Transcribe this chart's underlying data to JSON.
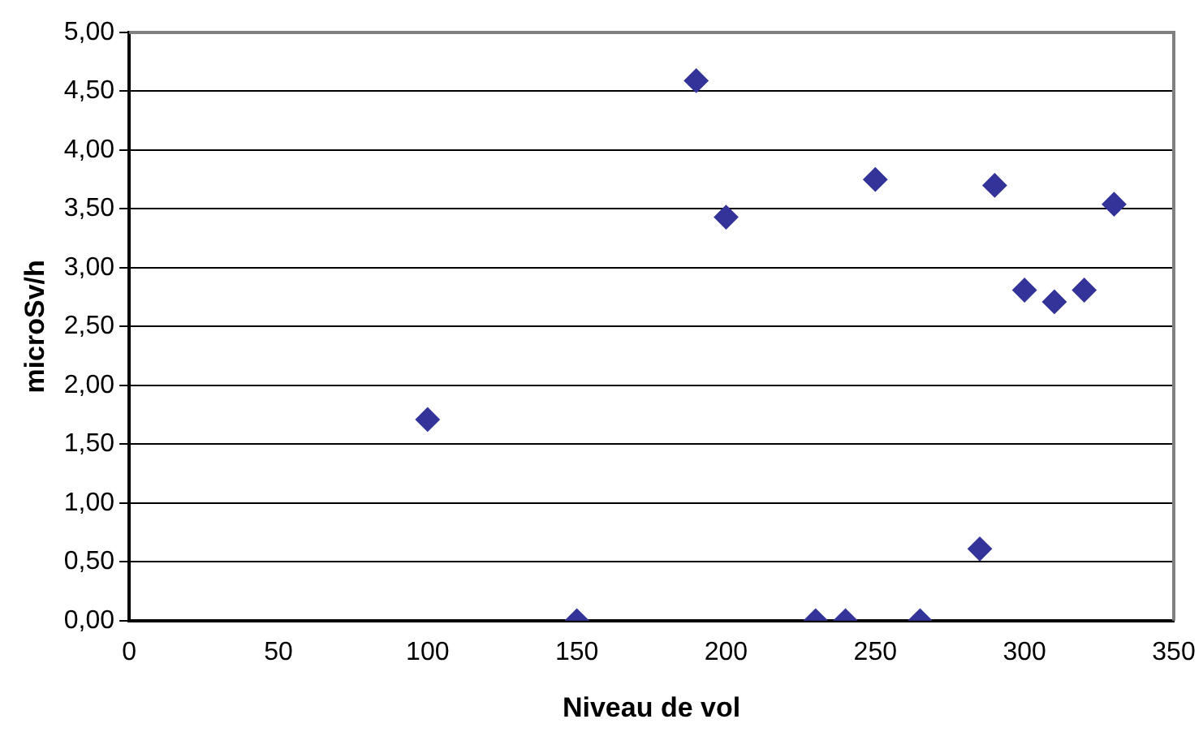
{
  "chart_data": {
    "type": "scatter",
    "xlabel": "Niveau de vol",
    "ylabel": "microSv/h",
    "x": [
      100,
      150,
      190,
      200,
      230,
      240,
      250,
      265,
      285,
      290,
      300,
      310,
      320,
      330
    ],
    "series": [
      {
        "color": "#333399",
        "values": [
          1.71,
          0,
          4.59,
          3.43,
          0,
          0,
          3.75,
          0,
          0.61,
          3.7,
          2.81,
          2.71,
          2.81,
          3.54
        ]
      }
    ],
    "xlim": [
      0,
      350
    ],
    "xticks": [
      0,
      50,
      100,
      150,
      200,
      250,
      300,
      350
    ],
    "ylim": [
      0,
      5
    ],
    "yticks": [
      {
        "value": 0,
        "label": "0,00"
      },
      {
        "value": 0.5,
        "label": "0,50"
      },
      {
        "value": 1,
        "label": "1,00"
      },
      {
        "value": 1.5,
        "label": "1,50"
      },
      {
        "value": 2,
        "label": "2,00"
      },
      {
        "value": 2.5,
        "label": "2,50"
      },
      {
        "value": 3,
        "label": "3,00"
      },
      {
        "value": 3.5,
        "label": "3,50"
      },
      {
        "value": 4,
        "label": "4,00"
      },
      {
        "value": 4.5,
        "label": "4,50"
      },
      {
        "value": 5,
        "label": "5,00"
      }
    ],
    "grid": "y",
    "legend": false,
    "marker": "diamond"
  }
}
